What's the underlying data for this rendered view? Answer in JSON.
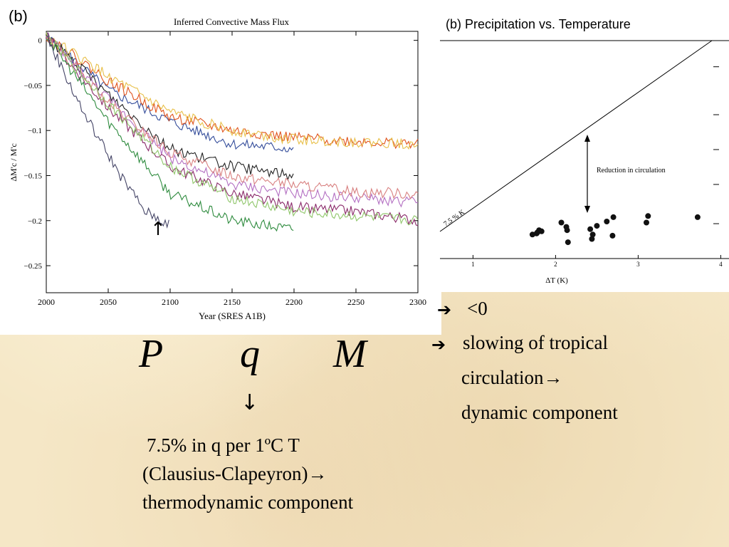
{
  "chart_data": [
    {
      "type": "line",
      "panel_label": "(b)",
      "title": "Inferred Convective Mass Flux",
      "xlabel": "Year (SRES A1B)",
      "ylabel": "ΔM'c / M'c",
      "xlim": [
        2000,
        2300
      ],
      "ylim": [
        -0.28,
        0.01
      ],
      "xticks": [
        2000,
        2050,
        2100,
        2150,
        2200,
        2250,
        2300
      ],
      "yticks": [
        0,
        -0.05,
        -0.1,
        -0.15,
        -0.2,
        -0.25
      ],
      "ytick_labels": [
        "0",
        "−0.05",
        "−0.1",
        "−0.15",
        "−0.2",
        "−0.25"
      ],
      "annotation": "↑",
      "series": [
        {
          "color": "#334c9a",
          "x": [
            2000,
            2050,
            2100,
            2150,
            2200
          ],
          "y": [
            0.005,
            -0.055,
            -0.09,
            -0.115,
            -0.12
          ]
        },
        {
          "color": "#e0541e",
          "x": [
            2000,
            2050,
            2100,
            2150,
            2200,
            2250,
            2300
          ],
          "y": [
            0.005,
            -0.045,
            -0.085,
            -0.1,
            -0.108,
            -0.112,
            -0.115
          ]
        },
        {
          "color": "#e8c04a",
          "x": [
            2000,
            2050,
            2100,
            2150,
            2200,
            2250,
            2300
          ],
          "y": [
            0.005,
            -0.04,
            -0.08,
            -0.1,
            -0.11,
            -0.113,
            -0.115
          ]
        },
        {
          "color": "#222222",
          "x": [
            2000,
            2050,
            2100,
            2150,
            2200
          ],
          "y": [
            0.005,
            -0.06,
            -0.12,
            -0.14,
            -0.15
          ]
        },
        {
          "color": "#b36fc2",
          "x": [
            2000,
            2050,
            2100,
            2150,
            2200,
            2250,
            2300
          ],
          "y": [
            0.005,
            -0.065,
            -0.13,
            -0.16,
            -0.17,
            -0.175,
            -0.18
          ]
        },
        {
          "color": "#8a2a6a",
          "x": [
            2000,
            2050,
            2100,
            2150,
            2200,
            2250,
            2300
          ],
          "y": [
            0.005,
            -0.075,
            -0.14,
            -0.17,
            -0.185,
            -0.19,
            -0.2
          ]
        },
        {
          "color": "#d88080",
          "x": [
            2000,
            2050,
            2100,
            2150,
            2200,
            2250,
            2300
          ],
          "y": [
            0.005,
            -0.07,
            -0.125,
            -0.15,
            -0.16,
            -0.168,
            -0.17
          ]
        },
        {
          "color": "#2e8b3e",
          "x": [
            2000,
            2050,
            2100,
            2150,
            2200
          ],
          "y": [
            0.005,
            -0.09,
            -0.17,
            -0.2,
            -0.21
          ]
        },
        {
          "color": "#8fc66a",
          "x": [
            2000,
            2050,
            2100,
            2150,
            2200,
            2250,
            2300
          ],
          "y": [
            0.005,
            -0.07,
            -0.14,
            -0.175,
            -0.19,
            -0.195,
            -0.2
          ]
        },
        {
          "color": "#444466",
          "x": [
            2000,
            2030,
            2060,
            2080,
            2100
          ],
          "y": [
            0.005,
            -0.08,
            -0.15,
            -0.19,
            -0.205
          ]
        }
      ]
    },
    {
      "type": "scatter",
      "title": "(b) Precipitation vs. Temperature",
      "xlabel": "ΔT (K)",
      "ylabel": "",
      "xlim": [
        0.6,
        4.1
      ],
      "ylim": [
        0,
        1
      ],
      "xticks": [
        1,
        2,
        3,
        4
      ],
      "reference_line_label": "7.5 % K",
      "annotation": "Reduction in circulation",
      "points": [
        {
          "x": 1.72,
          "y": 0.11
        },
        {
          "x": 1.78,
          "y": 0.12
        },
        {
          "x": 1.8,
          "y": 0.13
        },
        {
          "x": 1.83,
          "y": 0.125
        },
        {
          "x": 1.77,
          "y": 0.115
        },
        {
          "x": 2.07,
          "y": 0.165
        },
        {
          "x": 2.13,
          "y": 0.145
        },
        {
          "x": 2.14,
          "y": 0.13
        },
        {
          "x": 2.15,
          "y": 0.075
        },
        {
          "x": 2.42,
          "y": 0.135
        },
        {
          "x": 2.45,
          "y": 0.11
        },
        {
          "x": 2.44,
          "y": 0.09
        },
        {
          "x": 2.5,
          "y": 0.15
        },
        {
          "x": 2.62,
          "y": 0.17
        },
        {
          "x": 2.69,
          "y": 0.105
        },
        {
          "x": 2.7,
          "y": 0.19
        },
        {
          "x": 3.1,
          "y": 0.165
        },
        {
          "x": 3.12,
          "y": 0.195
        },
        {
          "x": 3.72,
          "y": 0.19
        }
      ]
    }
  ],
  "text": {
    "var_p": "P",
    "var_q": "q",
    "var_m": "M",
    "m_arrow": "➔",
    "m_lt0": "<0",
    "m_slow_arrow": "➔",
    "m_slowing": "slowing of tropical",
    "m_circulation": "circulation→",
    "m_dynamic": "dynamic component",
    "q_arrow": "↓",
    "q_line1": "7.5% in q per 1ºC T",
    "q_line2": "(Clausius-Clapeyron)→",
    "q_line3": "thermodynamic component"
  }
}
